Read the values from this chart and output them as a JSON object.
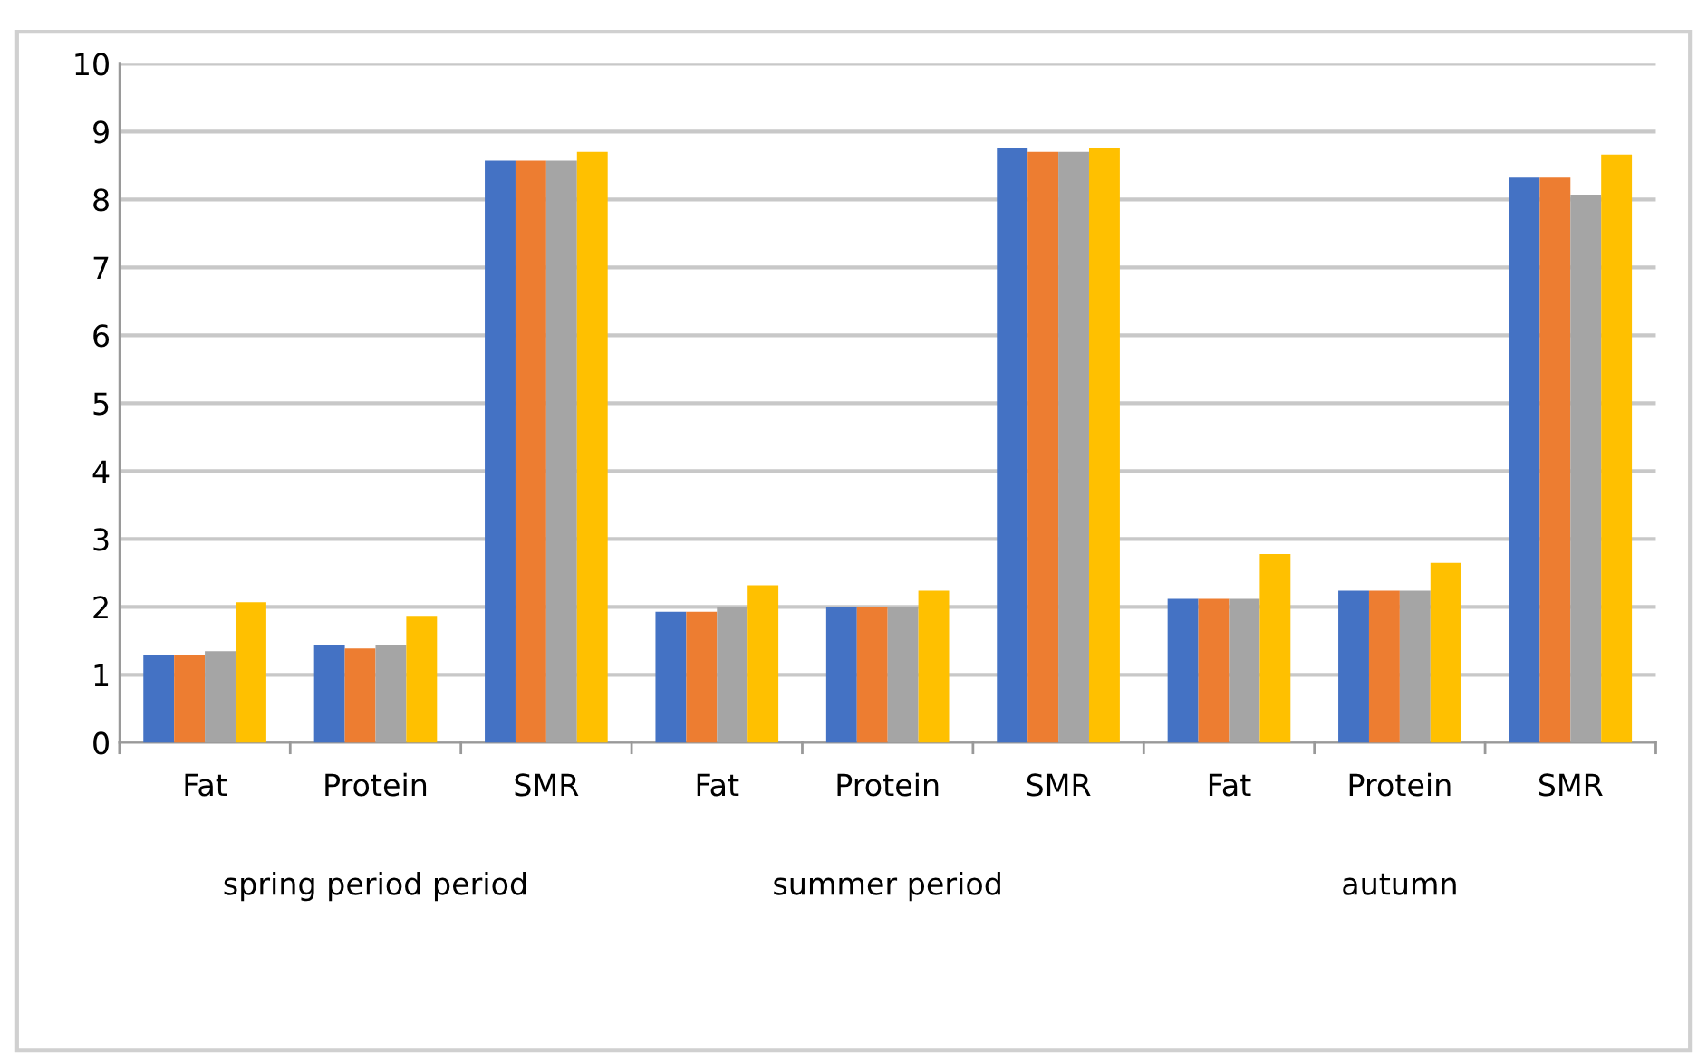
{
  "chart_data": {
    "type": "bar",
    "categories": [
      "Fat",
      "Protein",
      "SMR",
      "Fat",
      "Protein",
      "SMR",
      "Fat",
      "Protein",
      "SMR"
    ],
    "series": [
      {
        "color": "#4472c4",
        "values": [
          1.3,
          1.44,
          8.57,
          1.93,
          2.0,
          8.75,
          2.12,
          2.24,
          8.32
        ]
      },
      {
        "color": "#ed7d31",
        "values": [
          1.3,
          1.39,
          8.57,
          1.93,
          2.0,
          8.7,
          2.12,
          2.24,
          8.32
        ]
      },
      {
        "color": "#a5a5a5",
        "values": [
          1.35,
          1.44,
          8.57,
          2.0,
          2.0,
          8.7,
          2.12,
          2.24,
          8.07
        ]
      },
      {
        "color": "#ffc000",
        "values": [
          2.07,
          1.87,
          8.7,
          2.32,
          2.24,
          8.75,
          2.78,
          2.65,
          8.66
        ]
      }
    ],
    "ylim": [
      0,
      10
    ],
    "yticks": [
      0,
      1,
      2,
      3,
      4,
      5,
      6,
      7,
      8,
      9,
      10
    ],
    "grid": "y",
    "annotations": [
      "spring period period",
      "summer period",
      "autumn"
    ]
  }
}
